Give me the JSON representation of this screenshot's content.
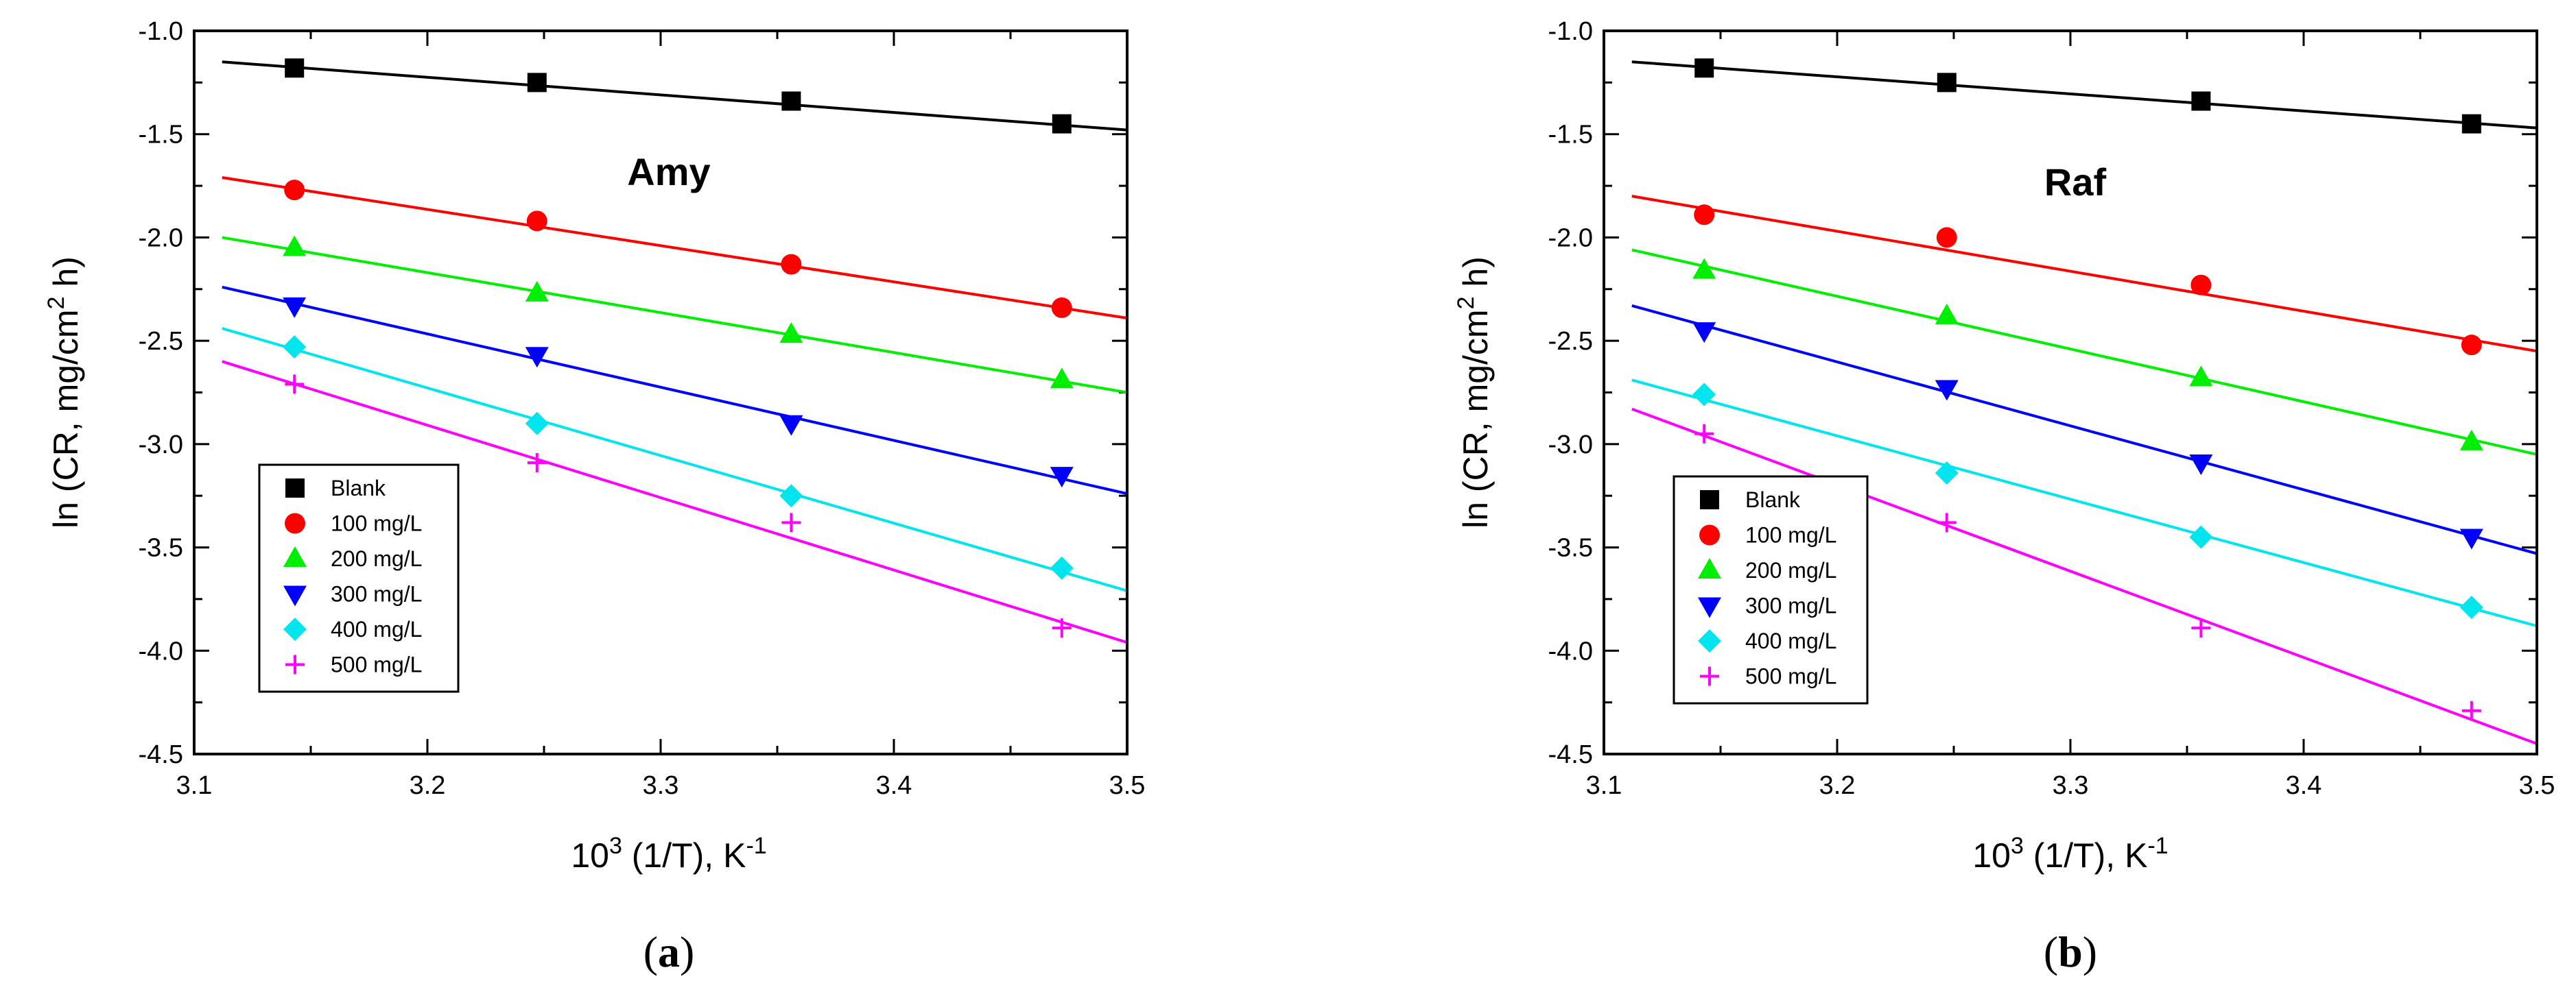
{
  "chart_data": [
    {
      "type": "scatter",
      "title": "Amy",
      "caption_open": "(",
      "caption_letter": "a",
      "caption_close": ")",
      "xlabel_base": "10",
      "xlabel_sup": "3",
      "xlabel_mid": " (1/T), K",
      "xlabel_sup2": "-1",
      "ylabel_main": "ln (CR, mg/cm",
      "ylabel_sup": "2",
      "ylabel_tail": " h)",
      "xlim": [
        3.1,
        3.5
      ],
      "ylim": [
        -4.5,
        -1.0
      ],
      "xticks": [
        "3.1",
        "3.2",
        "3.3",
        "3.4",
        "3.5"
      ],
      "yticks": [
        "-1.0",
        "-1.5",
        "-2.0",
        "-2.5",
        "-3.0",
        "-3.5",
        "-4.0",
        "-4.5"
      ],
      "legend_position": "lower-left",
      "series": [
        {
          "name": "Blank",
          "marker": "square",
          "color": "#000000",
          "x": [
            3.143,
            3.247,
            3.356,
            3.472
          ],
          "y": [
            -1.18,
            -1.25,
            -1.34,
            -1.45
          ],
          "fit": [
            -1.15,
            -1.48
          ]
        },
        {
          "name": "100 mg/L",
          "marker": "circle",
          "color": "#ff0000",
          "x": [
            3.143,
            3.247,
            3.356,
            3.472
          ],
          "y": [
            -1.77,
            -1.92,
            -2.13,
            -2.34
          ],
          "fit": [
            -1.71,
            -2.39
          ]
        },
        {
          "name": "200 mg/L",
          "marker": "triangle-up",
          "color": "#00ee00",
          "x": [
            3.143,
            3.247,
            3.356,
            3.472
          ],
          "y": [
            -2.05,
            -2.27,
            -2.47,
            -2.69
          ],
          "fit": [
            -2.0,
            -2.75
          ]
        },
        {
          "name": "300 mg/L",
          "marker": "triangle-down",
          "color": "#0000ff",
          "x": [
            3.143,
            3.247,
            3.356,
            3.472
          ],
          "y": [
            -2.33,
            -2.57,
            -2.9,
            -3.15
          ],
          "fit": [
            -2.24,
            -3.24
          ]
        },
        {
          "name": "400 mg/L",
          "marker": "diamond",
          "color": "#00e5ee",
          "x": [
            3.143,
            3.247,
            3.356,
            3.472
          ],
          "y": [
            -2.53,
            -2.9,
            -3.25,
            -3.6
          ],
          "fit": [
            -2.44,
            -3.71
          ]
        },
        {
          "name": "500 mg/L",
          "marker": "plus",
          "color": "#ff00ff",
          "x": [
            3.143,
            3.247,
            3.356,
            3.472
          ],
          "y": [
            -2.71,
            -3.09,
            -3.38,
            -3.89
          ],
          "fit": [
            -2.6,
            -3.96
          ]
        }
      ]
    },
    {
      "type": "scatter",
      "title": "Raf",
      "caption_open": "(",
      "caption_letter": "b",
      "caption_close": ")",
      "xlabel_base": "10",
      "xlabel_sup": "3",
      "xlabel_mid": " (1/T), K",
      "xlabel_sup2": "-1",
      "ylabel_main": "ln (CR, mg/cm",
      "ylabel_sup": "2",
      "ylabel_tail": " h)",
      "xlim": [
        3.1,
        3.5
      ],
      "ylim": [
        -4.5,
        -1.0
      ],
      "xticks": [
        "3.1",
        "3.2",
        "3.3",
        "3.4",
        "3.5"
      ],
      "yticks": [
        "-1.0",
        "-1.5",
        "-2.0",
        "-2.5",
        "-3.0",
        "-3.5",
        "-4.0",
        "-4.5"
      ],
      "legend_position": "lower-left",
      "series": [
        {
          "name": "Blank",
          "marker": "square",
          "color": "#000000",
          "x": [
            3.143,
            3.247,
            3.356,
            3.472
          ],
          "y": [
            -1.18,
            -1.25,
            -1.34,
            -1.45
          ],
          "fit": [
            -1.15,
            -1.47
          ]
        },
        {
          "name": "100 mg/L",
          "marker": "circle",
          "color": "#ff0000",
          "x": [
            3.143,
            3.247,
            3.356,
            3.472
          ],
          "y": [
            -1.89,
            -2.0,
            -2.23,
            -2.52
          ],
          "fit": [
            -1.8,
            -2.55
          ]
        },
        {
          "name": "200 mg/L",
          "marker": "triangle-up",
          "color": "#00ee00",
          "x": [
            3.143,
            3.247,
            3.356,
            3.472
          ],
          "y": [
            -2.16,
            -2.38,
            -2.68,
            -2.99
          ],
          "fit": [
            -2.06,
            -3.05
          ]
        },
        {
          "name": "300 mg/L",
          "marker": "triangle-down",
          "color": "#0000ff",
          "x": [
            3.143,
            3.247,
            3.356,
            3.472
          ],
          "y": [
            -2.45,
            -2.73,
            -3.09,
            -3.45
          ],
          "fit": [
            -2.33,
            -3.53
          ]
        },
        {
          "name": "400 mg/L",
          "marker": "diamond",
          "color": "#00e5ee",
          "x": [
            3.143,
            3.247,
            3.356,
            3.472
          ],
          "y": [
            -2.76,
            -3.14,
            -3.45,
            -3.79
          ],
          "fit": [
            -2.69,
            -3.88
          ]
        },
        {
          "name": "500 mg/L",
          "marker": "plus",
          "color": "#ff00ff",
          "x": [
            3.143,
            3.247,
            3.356,
            3.472
          ],
          "y": [
            -2.95,
            -3.38,
            -3.89,
            -4.29
          ],
          "fit": [
            -2.83,
            -4.45
          ]
        }
      ]
    }
  ]
}
